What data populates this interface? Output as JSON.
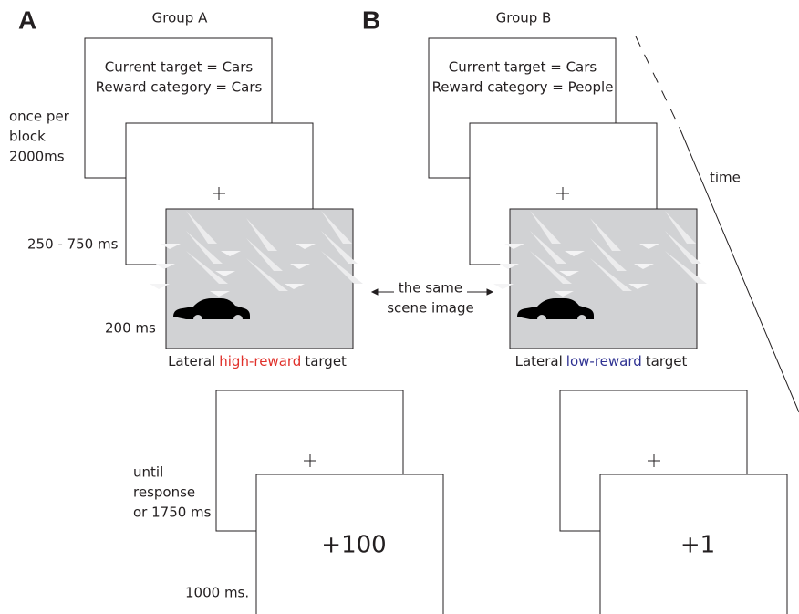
{
  "panels": [
    {
      "label": "A",
      "group": "Group A",
      "cue": [
        "Current target = Cars",
        "Reward category = Cars"
      ],
      "caption": {
        "prefix": "Lateral",
        "highlight": "high-reward",
        "suffix": "target",
        "highlight_color": "#e0302a"
      },
      "feedback": "+100"
    },
    {
      "label": "B",
      "group": "Group B",
      "cue": [
        "Current target = Cars",
        "Reward category = People"
      ],
      "caption": {
        "prefix": "Lateral",
        "highlight": "low-reward",
        "suffix": "target",
        "highlight_color": "#2e3192"
      },
      "feedback": "+1"
    }
  ],
  "timing": {
    "cue": [
      "once per",
      "block",
      "2000ms"
    ],
    "fixation": "250 - 750 ms",
    "scene": "200 ms",
    "response": [
      "until",
      "response",
      "or 1750 ms"
    ],
    "feedback": "1000 ms."
  },
  "middle": [
    "the same",
    "scene image"
  ],
  "time": "time"
}
